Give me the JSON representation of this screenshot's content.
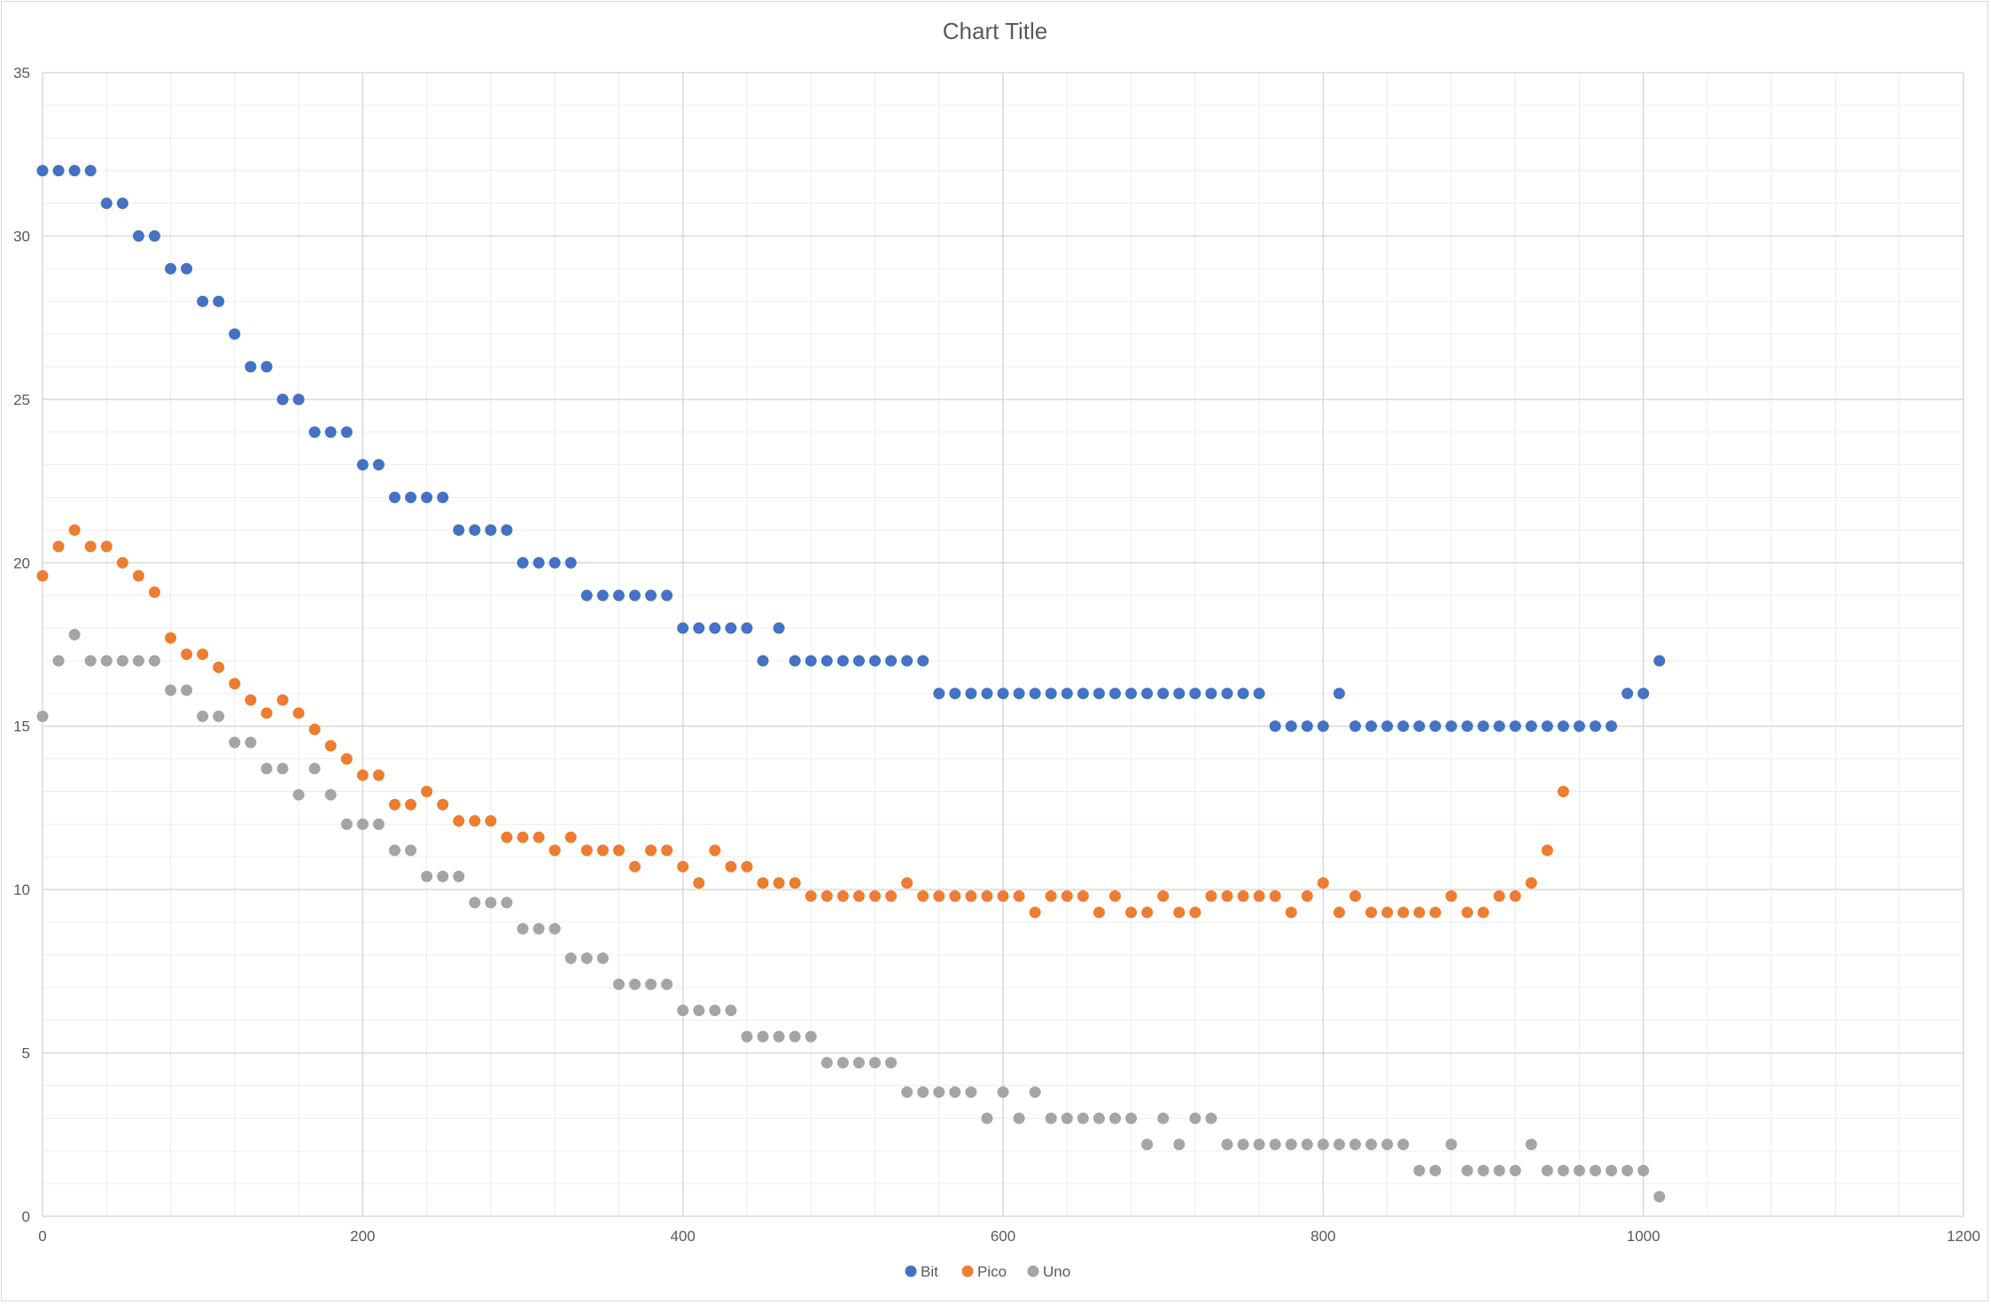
{
  "chart_data": {
    "type": "scatter",
    "title": "Chart Title",
    "xlabel": "",
    "ylabel": "",
    "xlim": [
      0,
      1200
    ],
    "ylim": [
      0,
      35
    ],
    "x_ticks": [
      0,
      200,
      400,
      600,
      800,
      1000,
      1200
    ],
    "y_ticks": [
      0,
      5,
      10,
      15,
      20,
      25,
      30,
      35
    ],
    "grid": "major and minor",
    "legend": "bottom-center",
    "colors": {
      "Bit": "#4472C4",
      "Pico": "#ED7D31",
      "Uno": "#A5A5A5",
      "grid_major": "#D9D9D9",
      "grid_minor": "#EDEDED"
    },
    "series": [
      {
        "name": "Bit",
        "points": [
          [
            0,
            32
          ],
          [
            10,
            32
          ],
          [
            20,
            32
          ],
          [
            30,
            32
          ],
          [
            40,
            31
          ],
          [
            50,
            31
          ],
          [
            60,
            30
          ],
          [
            70,
            30
          ],
          [
            80,
            29
          ],
          [
            90,
            29
          ],
          [
            100,
            28
          ],
          [
            110,
            28
          ],
          [
            120,
            27
          ],
          [
            130,
            26
          ],
          [
            140,
            26
          ],
          [
            150,
            25
          ],
          [
            160,
            25
          ],
          [
            170,
            24
          ],
          [
            180,
            24
          ],
          [
            190,
            24
          ],
          [
            200,
            23
          ],
          [
            210,
            23
          ],
          [
            220,
            22
          ],
          [
            230,
            22
          ],
          [
            240,
            22
          ],
          [
            250,
            22
          ],
          [
            260,
            21
          ],
          [
            270,
            21
          ],
          [
            280,
            21
          ],
          [
            290,
            21
          ],
          [
            300,
            20
          ],
          [
            310,
            20
          ],
          [
            320,
            20
          ],
          [
            330,
            20
          ],
          [
            340,
            19
          ],
          [
            350,
            19
          ],
          [
            360,
            19
          ],
          [
            370,
            19
          ],
          [
            380,
            19
          ],
          [
            390,
            19
          ],
          [
            400,
            18
          ],
          [
            410,
            18
          ],
          [
            420,
            18
          ],
          [
            430,
            18
          ],
          [
            440,
            18
          ],
          [
            450,
            17
          ],
          [
            460,
            18
          ],
          [
            470,
            17
          ],
          [
            480,
            17
          ],
          [
            490,
            17
          ],
          [
            500,
            17
          ],
          [
            510,
            17
          ],
          [
            520,
            17
          ],
          [
            530,
            17
          ],
          [
            540,
            17
          ],
          [
            550,
            17
          ],
          [
            560,
            16
          ],
          [
            570,
            16
          ],
          [
            580,
            16
          ],
          [
            590,
            16
          ],
          [
            600,
            16
          ],
          [
            610,
            16
          ],
          [
            620,
            16
          ],
          [
            630,
            16
          ],
          [
            640,
            16
          ],
          [
            650,
            16
          ],
          [
            660,
            16
          ],
          [
            670,
            16
          ],
          [
            680,
            16
          ],
          [
            690,
            16
          ],
          [
            700,
            16
          ],
          [
            710,
            16
          ],
          [
            720,
            16
          ],
          [
            730,
            16
          ],
          [
            740,
            16
          ],
          [
            750,
            16
          ],
          [
            760,
            16
          ],
          [
            770,
            15
          ],
          [
            780,
            15
          ],
          [
            790,
            15
          ],
          [
            800,
            15
          ],
          [
            810,
            16
          ],
          [
            820,
            15
          ],
          [
            830,
            15
          ],
          [
            840,
            15
          ],
          [
            850,
            15
          ],
          [
            860,
            15
          ],
          [
            870,
            15
          ],
          [
            880,
            15
          ],
          [
            890,
            15
          ],
          [
            900,
            15
          ],
          [
            910,
            15
          ],
          [
            920,
            15
          ],
          [
            930,
            15
          ],
          [
            940,
            15
          ],
          [
            950,
            15
          ],
          [
            960,
            15
          ],
          [
            970,
            15
          ],
          [
            980,
            15
          ],
          [
            990,
            16
          ],
          [
            1000,
            16
          ],
          [
            1010,
            17
          ]
        ]
      },
      {
        "name": "Pico",
        "points": [
          [
            0,
            19.6
          ],
          [
            10,
            20.5
          ],
          [
            20,
            21
          ],
          [
            30,
            20.5
          ],
          [
            40,
            20.5
          ],
          [
            50,
            20
          ],
          [
            60,
            19.6
          ],
          [
            70,
            19.1
          ],
          [
            80,
            17.7
          ],
          [
            90,
            17.2
          ],
          [
            100,
            17.2
          ],
          [
            110,
            16.8
          ],
          [
            120,
            16.3
          ],
          [
            130,
            15.8
          ],
          [
            140,
            15.4
          ],
          [
            150,
            15.8
          ],
          [
            160,
            15.4
          ],
          [
            170,
            14.9
          ],
          [
            180,
            14.4
          ],
          [
            190,
            14
          ],
          [
            200,
            13.5
          ],
          [
            210,
            13.5
          ],
          [
            220,
            12.6
          ],
          [
            230,
            12.6
          ],
          [
            240,
            13
          ],
          [
            250,
            12.6
          ],
          [
            260,
            12.1
          ],
          [
            270,
            12.1
          ],
          [
            280,
            12.1
          ],
          [
            290,
            11.6
          ],
          [
            300,
            11.6
          ],
          [
            310,
            11.6
          ],
          [
            320,
            11.2
          ],
          [
            330,
            11.6
          ],
          [
            340,
            11.2
          ],
          [
            350,
            11.2
          ],
          [
            360,
            11.2
          ],
          [
            370,
            10.7
          ],
          [
            380,
            11.2
          ],
          [
            390,
            11.2
          ],
          [
            400,
            10.7
          ],
          [
            410,
            10.2
          ],
          [
            420,
            11.2
          ],
          [
            430,
            10.7
          ],
          [
            440,
            10.7
          ],
          [
            450,
            10.2
          ],
          [
            460,
            10.2
          ],
          [
            470,
            10.2
          ],
          [
            480,
            9.8
          ],
          [
            490,
            9.8
          ],
          [
            500,
            9.8
          ],
          [
            510,
            9.8
          ],
          [
            520,
            9.8
          ],
          [
            530,
            9.8
          ],
          [
            540,
            10.2
          ],
          [
            550,
            9.8
          ],
          [
            560,
            9.8
          ],
          [
            570,
            9.8
          ],
          [
            580,
            9.8
          ],
          [
            590,
            9.8
          ],
          [
            600,
            9.8
          ],
          [
            610,
            9.8
          ],
          [
            620,
            9.3
          ],
          [
            630,
            9.8
          ],
          [
            640,
            9.8
          ],
          [
            650,
            9.8
          ],
          [
            660,
            9.3
          ],
          [
            670,
            9.8
          ],
          [
            680,
            9.3
          ],
          [
            690,
            9.3
          ],
          [
            700,
            9.8
          ],
          [
            710,
            9.3
          ],
          [
            720,
            9.3
          ],
          [
            730,
            9.8
          ],
          [
            740,
            9.8
          ],
          [
            750,
            9.8
          ],
          [
            760,
            9.8
          ],
          [
            770,
            9.8
          ],
          [
            780,
            9.3
          ],
          [
            790,
            9.8
          ],
          [
            800,
            10.2
          ],
          [
            810,
            9.3
          ],
          [
            820,
            9.8
          ],
          [
            830,
            9.3
          ],
          [
            840,
            9.3
          ],
          [
            850,
            9.3
          ],
          [
            860,
            9.3
          ],
          [
            870,
            9.3
          ],
          [
            880,
            9.8
          ],
          [
            890,
            9.3
          ],
          [
            900,
            9.3
          ],
          [
            910,
            9.8
          ],
          [
            920,
            9.8
          ],
          [
            930,
            10.2
          ],
          [
            940,
            11.2
          ],
          [
            950,
            13
          ]
        ]
      },
      {
        "name": "Uno",
        "points": [
          [
            0,
            15.3
          ],
          [
            10,
            17
          ],
          [
            20,
            17.8
          ],
          [
            30,
            17
          ],
          [
            40,
            17
          ],
          [
            50,
            17
          ],
          [
            60,
            17
          ],
          [
            70,
            17
          ],
          [
            80,
            16.1
          ],
          [
            90,
            16.1
          ],
          [
            100,
            15.3
          ],
          [
            110,
            15.3
          ],
          [
            120,
            14.5
          ],
          [
            130,
            14.5
          ],
          [
            140,
            13.7
          ],
          [
            150,
            13.7
          ],
          [
            160,
            12.9
          ],
          [
            170,
            13.7
          ],
          [
            180,
            12.9
          ],
          [
            190,
            12
          ],
          [
            200,
            12
          ],
          [
            210,
            12
          ],
          [
            220,
            11.2
          ],
          [
            230,
            11.2
          ],
          [
            240,
            10.4
          ],
          [
            250,
            10.4
          ],
          [
            260,
            10.4
          ],
          [
            270,
            9.6
          ],
          [
            280,
            9.6
          ],
          [
            290,
            9.6
          ],
          [
            300,
            8.8
          ],
          [
            310,
            8.8
          ],
          [
            320,
            8.8
          ],
          [
            330,
            7.9
          ],
          [
            340,
            7.9
          ],
          [
            350,
            7.9
          ],
          [
            360,
            7.1
          ],
          [
            370,
            7.1
          ],
          [
            380,
            7.1
          ],
          [
            390,
            7.1
          ],
          [
            400,
            6.3
          ],
          [
            410,
            6.3
          ],
          [
            420,
            6.3
          ],
          [
            430,
            6.3
          ],
          [
            440,
            5.5
          ],
          [
            450,
            5.5
          ],
          [
            460,
            5.5
          ],
          [
            470,
            5.5
          ],
          [
            480,
            5.5
          ],
          [
            490,
            4.7
          ],
          [
            500,
            4.7
          ],
          [
            510,
            4.7
          ],
          [
            520,
            4.7
          ],
          [
            530,
            4.7
          ],
          [
            540,
            3.8
          ],
          [
            550,
            3.8
          ],
          [
            560,
            3.8
          ],
          [
            570,
            3.8
          ],
          [
            580,
            3.8
          ],
          [
            590,
            3
          ],
          [
            600,
            3.8
          ],
          [
            610,
            3
          ],
          [
            620,
            3.8
          ],
          [
            630,
            3
          ],
          [
            640,
            3
          ],
          [
            650,
            3
          ],
          [
            660,
            3
          ],
          [
            670,
            3
          ],
          [
            680,
            3
          ],
          [
            690,
            2.2
          ],
          [
            700,
            3
          ],
          [
            710,
            2.2
          ],
          [
            720,
            3
          ],
          [
            730,
            3
          ],
          [
            740,
            2.2
          ],
          [
            750,
            2.2
          ],
          [
            760,
            2.2
          ],
          [
            770,
            2.2
          ],
          [
            780,
            2.2
          ],
          [
            790,
            2.2
          ],
          [
            800,
            2.2
          ],
          [
            810,
            2.2
          ],
          [
            820,
            2.2
          ],
          [
            830,
            2.2
          ],
          [
            840,
            2.2
          ],
          [
            850,
            2.2
          ],
          [
            860,
            1.4
          ],
          [
            870,
            1.4
          ],
          [
            880,
            2.2
          ],
          [
            890,
            1.4
          ],
          [
            900,
            1.4
          ],
          [
            910,
            1.4
          ],
          [
            920,
            1.4
          ],
          [
            930,
            2.2
          ],
          [
            940,
            1.4
          ],
          [
            950,
            1.4
          ],
          [
            960,
            1.4
          ],
          [
            970,
            1.4
          ],
          [
            980,
            1.4
          ],
          [
            990,
            1.4
          ],
          [
            1000,
            1.4
          ],
          [
            1010,
            0.6
          ]
        ]
      }
    ]
  }
}
